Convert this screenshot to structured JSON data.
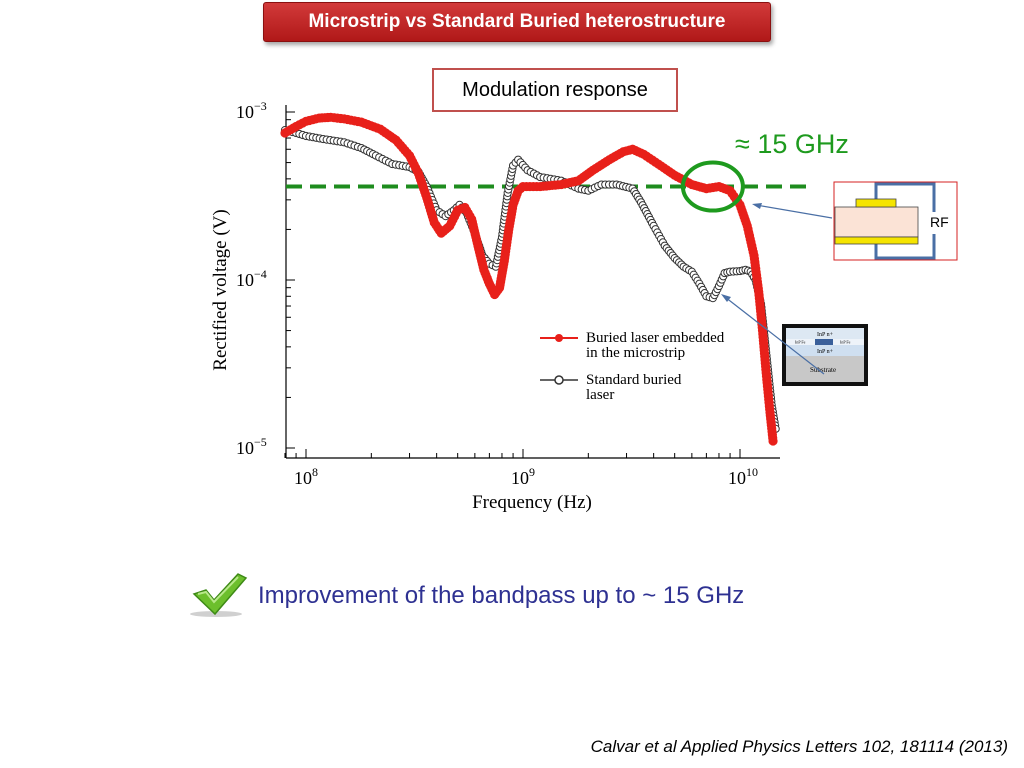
{
  "slide": {
    "title": "Microstrip vs Standard Buried heterostructure",
    "subtitle": "Modulation response",
    "annotation": "≈ 15 GHz",
    "improvement": "Improvement of the bandpass up to ~ 15 GHz",
    "citation": "Calvar et al Applied Physics Letters 102, 181114 (2013)",
    "inset_rf": {
      "label": "RF"
    },
    "inset_structure": {
      "top_layer": "InP n+",
      "active_left": "InP Fe",
      "active_right": "InP Fe",
      "bottom_layer": "InP n+",
      "substrate": "Substrate"
    },
    "colors": {
      "title_bg": "#c0282a",
      "red_series": "#e8201a",
      "black_series": "#333333",
      "dashed_line": "#1e8c1e",
      "circle": "#1e9a1e",
      "text_blue": "#2e3192"
    },
    "icons": {
      "check": "checkmark-icon"
    }
  },
  "chart_data": {
    "type": "scatter",
    "xlabel": "Frequency (Hz)",
    "ylabel": "Rectified voltage (V)",
    "xscale": "log",
    "yscale": "log",
    "xlim": [
      80000000.0,
      16000000000.0
    ],
    "ylim": [
      1e-05,
      0.001
    ],
    "x_ticks": [
      {
        "base": "10",
        "exp": "8"
      },
      {
        "base": "10",
        "exp": "9"
      },
      {
        "base": "10",
        "exp": "10"
      }
    ],
    "y_ticks": [
      {
        "base": "10",
        "exp": "−3"
      },
      {
        "base": "10",
        "exp": "−4"
      },
      {
        "base": "10",
        "exp": "−5"
      }
    ],
    "reference_line": {
      "y": 0.00036,
      "style": "dashed",
      "color": "#1e8c1e"
    },
    "highlight_circle": {
      "x": 7500000000.0,
      "y": 0.00036
    },
    "legend": {
      "placement": "lower-center"
    },
    "series": [
      {
        "name": "Buried laser embedded in the microstrip",
        "marker": "filled-circle",
        "color": "#e8201a",
        "points": [
          [
            80000000.0,
            0.00075
          ],
          [
            90000000.0,
            0.00082
          ],
          [
            100000000.0,
            0.00088
          ],
          [
            115000000.0,
            0.00092
          ],
          [
            130000000.0,
            0.00093
          ],
          [
            150000000.0,
            0.00091
          ],
          [
            180000000.0,
            0.00087
          ],
          [
            220000000.0,
            0.00079
          ],
          [
            260000000.0,
            0.00068
          ],
          [
            300000000.0,
            0.00055
          ],
          [
            330000000.0,
            0.00043
          ],
          [
            360000000.0,
            0.00031
          ],
          [
            390000000.0,
            0.00022
          ],
          [
            420000000.0,
            0.00019
          ],
          [
            460000000.0,
            0.00021
          ],
          [
            500000000.0,
            0.00026
          ],
          [
            540000000.0,
            0.00027
          ],
          [
            580000000.0,
            0.00023
          ],
          [
            620000000.0,
            0.00016
          ],
          [
            660000000.0,
            0.000115
          ],
          [
            700000000.0,
            9.5e-05
          ],
          [
            740000000.0,
            8.2e-05
          ],
          [
            780000000.0,
            9e-05
          ],
          [
            820000000.0,
            0.00013
          ],
          [
            860000000.0,
            0.0002
          ],
          [
            900000000.0,
            0.00028
          ],
          [
            950000000.0,
            0.00034
          ],
          [
            1000000000.0,
            0.00036
          ],
          [
            1200000000.0,
            0.00036
          ],
          [
            1500000000.0,
            0.00037
          ],
          [
            1800000000.0,
            0.00039
          ],
          [
            2100000000.0,
            0.00045
          ],
          [
            2500000000.0,
            0.00052
          ],
          [
            2900000000.0,
            0.00058
          ],
          [
            3200000000.0,
            0.0006
          ],
          [
            3600000000.0,
            0.00056
          ],
          [
            4200000000.0,
            0.00049
          ],
          [
            5000000000.0,
            0.00042
          ],
          [
            6000000000.0,
            0.00037
          ],
          [
            7000000000.0,
            0.00035
          ],
          [
            8000000000.0,
            0.00036
          ],
          [
            9000000000.0,
            0.00034
          ],
          [
            10000000000.0,
            0.00028
          ],
          [
            10800000000.0,
            0.00021
          ],
          [
            11600000000.0,
            0.00014
          ],
          [
            12200000000.0,
            8.5e-05
          ],
          [
            12700000000.0,
            5e-05
          ],
          [
            13200000000.0,
            2.8e-05
          ],
          [
            13700000000.0,
            1.7e-05
          ],
          [
            14200000000.0,
            1.1e-05
          ]
        ]
      },
      {
        "name": "Standard buried laser",
        "marker": "open-circle",
        "color": "#333333",
        "points": [
          [
            80000000.0,
            0.00078
          ],
          [
            90000000.0,
            0.00075
          ],
          [
            100000000.0,
            0.00072
          ],
          [
            120000000.0,
            0.00069
          ],
          [
            150000000.0,
            0.00066
          ],
          [
            180000000.0,
            0.00061
          ],
          [
            210000000.0,
            0.00055
          ],
          [
            250000000.0,
            0.00049
          ],
          [
            300000000.0,
            0.00047
          ],
          [
            330000000.0,
            0.00044
          ],
          [
            360000000.0,
            0.00036
          ],
          [
            400000000.0,
            0.00026
          ],
          [
            440000000.0,
            0.00024
          ],
          [
            480000000.0,
            0.00026
          ],
          [
            510000000.0,
            0.00028
          ],
          [
            550000000.0,
            0.00025
          ],
          [
            600000000.0,
            0.00019
          ],
          [
            650000000.0,
            0.00014
          ],
          [
            700000000.0,
            0.000125
          ],
          [
            750000000.0,
            0.00012
          ],
          [
            800000000.0,
            0.00018
          ],
          [
            850000000.0,
            0.00033
          ],
          [
            900000000.0,
            0.00048
          ],
          [
            950000000.0,
            0.00052
          ],
          [
            1050000000.0,
            0.00045
          ],
          [
            1200000000.0,
            0.00041
          ],
          [
            1500000000.0,
            0.00039
          ],
          [
            1800000000.0,
            0.00035
          ],
          [
            2000000000.0,
            0.00034
          ],
          [
            2300000000.0,
            0.00037
          ],
          [
            2700000000.0,
            0.00037
          ],
          [
            3200000000.0,
            0.00035
          ],
          [
            3500000000.0,
            0.00029
          ],
          [
            4000000000.0,
            0.00021
          ],
          [
            4500000000.0,
            0.00016
          ],
          [
            5000000000.0,
            0.000135
          ],
          [
            5500000000.0,
            0.00012
          ],
          [
            6000000000.0,
            0.000112
          ],
          [
            6500000000.0,
            9.5e-05
          ],
          [
            7000000000.0,
            8e-05
          ],
          [
            7500000000.0,
            7.8e-05
          ],
          [
            8000000000.0,
            9.2e-05
          ],
          [
            8500000000.0,
            0.00011
          ],
          [
            9000000000.0,
            0.000112
          ],
          [
            10000000000.0,
            0.000113
          ],
          [
            10600000000.0,
            0.000115
          ],
          [
            11200000000.0,
            0.000112
          ],
          [
            11800000000.0,
            0.0001
          ],
          [
            12500000000.0,
            7.2e-05
          ],
          [
            13000000000.0,
            4.5e-05
          ],
          [
            13500000000.0,
            2.8e-05
          ],
          [
            14000000000.0,
            1.8e-05
          ],
          [
            14600000000.0,
            1.3e-05
          ]
        ]
      }
    ]
  }
}
